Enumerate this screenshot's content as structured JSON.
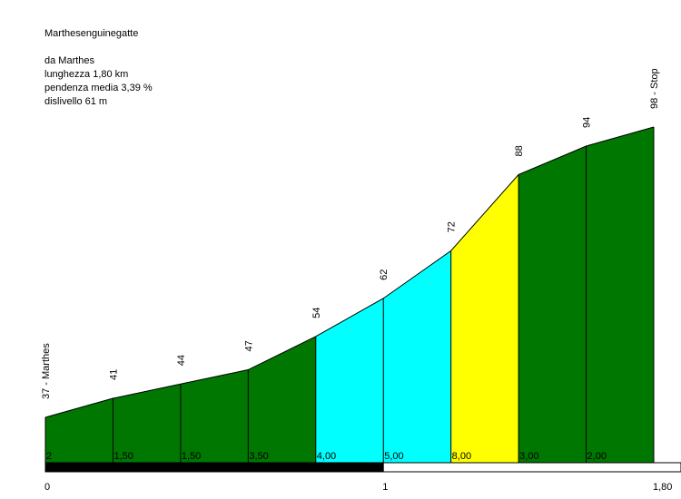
{
  "title": "Marthesenguinegatte",
  "info": {
    "from": "da Marthes",
    "length": "lunghezza 1,80 km",
    "avg_grade": "pendenza media 3,39 %",
    "elevation_gain": "dislivello 61 m"
  },
  "chart_data": {
    "type": "area",
    "title": "Marthesenguinegatte",
    "xlabel": "",
    "ylabel": "",
    "x_ticks": [
      "0",
      "1",
      "1,80"
    ],
    "xlim": [
      0,
      1.8
    ],
    "ylim": [
      37,
      98
    ],
    "points": [
      {
        "x": 0.0,
        "y": 37,
        "label": "37 - Marthes"
      },
      {
        "x": 0.2,
        "y": 41,
        "label": "41"
      },
      {
        "x": 0.4,
        "y": 44,
        "label": "44"
      },
      {
        "x": 0.6,
        "y": 47,
        "label": "47"
      },
      {
        "x": 0.8,
        "y": 54,
        "label": "54"
      },
      {
        "x": 1.0,
        "y": 62,
        "label": "62"
      },
      {
        "x": 1.2,
        "y": 72,
        "label": "72"
      },
      {
        "x": 1.4,
        "y": 88,
        "label": "88"
      },
      {
        "x": 1.6,
        "y": 94,
        "label": "94"
      },
      {
        "x": 1.8,
        "y": 98,
        "label": "98 - Stop"
      }
    ],
    "segments": [
      {
        "grade": "2",
        "color": "#007700"
      },
      {
        "grade": "1,50",
        "color": "#007700"
      },
      {
        "grade": "1,50",
        "color": "#007700"
      },
      {
        "grade": "3,50",
        "color": "#007700"
      },
      {
        "grade": "4,00",
        "color": "#00ffff"
      },
      {
        "grade": "5,00",
        "color": "#00ffff"
      },
      {
        "grade": "8,00",
        "color": "#ffff00"
      },
      {
        "grade": "3,00",
        "color": "#007700"
      },
      {
        "grade": "2,00",
        "color": "#007700"
      }
    ],
    "km_bar": {
      "filled_color": "#000000",
      "empty_color": "#ffffff"
    }
  }
}
